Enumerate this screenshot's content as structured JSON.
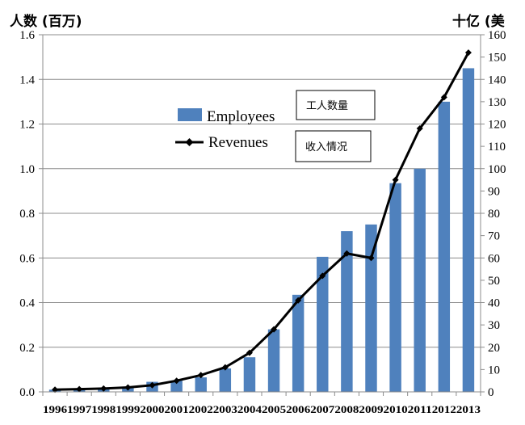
{
  "chart_data": {
    "type": "bar",
    "categories": [
      "1996",
      "1997",
      "1998",
      "1999",
      "2000",
      "2001",
      "2002",
      "2003",
      "2004",
      "2005",
      "2006",
      "2007",
      "2008",
      "2009",
      "2010",
      "2011",
      "2012",
      "2013"
    ],
    "series": [
      {
        "name": "Employees",
        "chart": "bar",
        "axis": "left",
        "color": "#4f81bd",
        "values": [
          0.01,
          0.012,
          0.015,
          0.02,
          0.045,
          0.05,
          0.065,
          0.105,
          0.155,
          0.28,
          0.435,
          0.605,
          0.72,
          0.75,
          0.935,
          1.0,
          1.3,
          1.45
        ]
      },
      {
        "name": "Revenues",
        "chart": "line",
        "axis": "right",
        "color": "#000000",
        "marker": "diamond",
        "values": [
          1,
          1.2,
          1.5,
          2,
          3,
          5,
          7.5,
          11,
          17.5,
          28,
          41,
          52,
          62,
          60,
          95,
          118,
          132,
          152
        ]
      }
    ],
    "left_axis": {
      "title": "人数 (百万)",
      "ylim": [
        0,
        1.6
      ],
      "ticks": [
        "0.0",
        "0.2",
        "0.4",
        "0.6",
        "0.8",
        "1.0",
        "1.2",
        "1.4",
        "1.6"
      ]
    },
    "right_axis": {
      "title": "十亿 (美",
      "ylim": [
        0,
        160
      ],
      "ticks": [
        "0",
        "10",
        "20",
        "30",
        "40",
        "50",
        "60",
        "70",
        "80",
        "90",
        "100",
        "110",
        "120",
        "130",
        "140",
        "150",
        "160"
      ]
    },
    "grid": true,
    "legend": "upper-left-center",
    "annotations": [
      "工人数量",
      "收入情况"
    ]
  }
}
